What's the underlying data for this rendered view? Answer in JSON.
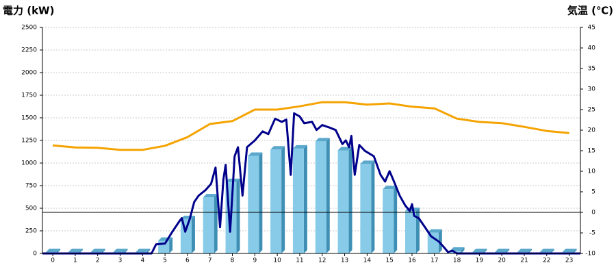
{
  "chart_data": {
    "type": "combo",
    "title": "電力 (kW)",
    "y2_title": "気温 (℃)",
    "title_color": "#1f6fb2",
    "y2_title_color": "#f08020",
    "categories": [
      "0",
      "1",
      "2",
      "3",
      "4",
      "5",
      "6",
      "7",
      "8",
      "9",
      "10",
      "11",
      "12",
      "13",
      "14",
      "15",
      "16",
      "17",
      "18",
      "19",
      "20",
      "21",
      "22",
      "23"
    ],
    "xlim": [
      -0.46,
      23.5
    ],
    "ylim": [
      0,
      2500
    ],
    "yticks": [
      0,
      250,
      500,
      750,
      1000,
      1250,
      1500,
      1750,
      2000,
      2250,
      2500
    ],
    "y2lim": [
      -10,
      45
    ],
    "y2ticks": [
      -10,
      -5,
      0,
      5,
      10,
      15,
      20,
      25,
      30,
      35,
      40,
      45
    ],
    "grid": true,
    "reference_line": {
      "axis": "y2",
      "value": 0
    },
    "series": [
      {
        "type": "bar",
        "color": "#87cbe8",
        "values": [
          15,
          15,
          15,
          15,
          15,
          140,
          380,
          620,
          790,
          1080,
          1150,
          1160,
          1240,
          1140,
          990,
          710,
          470,
          230,
          30,
          15,
          15,
          15,
          15,
          15
        ]
      },
      {
        "type": "line",
        "color": "#00008b",
        "x": [
          -0.46,
          4.4,
          4.6,
          5,
          5.3,
          5.65,
          5.75,
          5.9,
          6.1,
          6.3,
          6.5,
          6.8,
          7.05,
          7.25,
          7.45,
          7.6,
          7.7,
          7.9,
          8.1,
          8.25,
          8.45,
          8.65,
          9,
          9.35,
          9.6,
          9.9,
          10.2,
          10.4,
          10.6,
          10.75,
          11,
          11.2,
          11.55,
          11.75,
          12,
          12.3,
          12.6,
          12.9,
          13.05,
          13.2,
          13.3,
          13.45,
          13.65,
          13.9,
          14.3,
          14.6,
          14.8,
          15,
          15.2,
          15.45,
          15.7,
          15.9,
          16,
          16.1,
          16.3,
          16.55,
          16.85,
          17.2,
          17.4,
          17.6,
          17.8,
          18,
          23.5
        ],
        "values": [
          0,
          0,
          100,
          110,
          230,
          360,
          390,
          240,
          380,
          570,
          640,
          700,
          770,
          950,
          290,
          820,
          980,
          240,
          1075,
          1175,
          640,
          1175,
          1250,
          1350,
          1320,
          1490,
          1455,
          1480,
          870,
          1550,
          1515,
          1440,
          1455,
          1365,
          1420,
          1395,
          1365,
          1210,
          1250,
          1175,
          1300,
          870,
          1200,
          1135,
          1075,
          870,
          795,
          910,
          795,
          640,
          530,
          470,
          545,
          415,
          390,
          300,
          190,
          130,
          75,
          15,
          30,
          0,
          0
        ]
      },
      {
        "type": "line",
        "color": "#f5a300",
        "axis": "y2",
        "values": [
          16.3,
          15.8,
          15.7,
          15.2,
          15.2,
          16.2,
          18.3,
          21.5,
          22.2,
          25,
          25,
          25.8,
          26.8,
          26.8,
          26.2,
          26.5,
          25.7,
          25.3,
          22.8,
          22,
          21.7,
          20.8,
          19.8,
          19.3
        ]
      }
    ]
  }
}
